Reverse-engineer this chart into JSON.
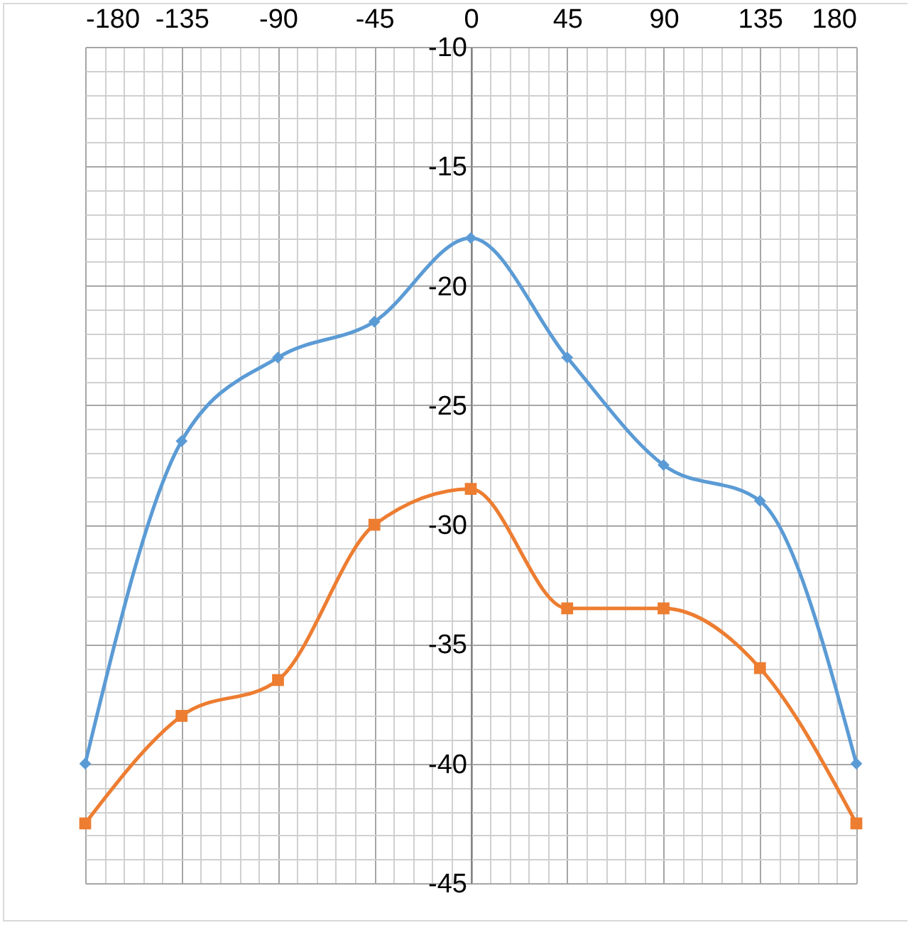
{
  "chart_data": {
    "type": "line",
    "x": [
      -180,
      -135,
      -90,
      -45,
      0,
      45,
      90,
      135,
      180
    ],
    "series": [
      {
        "color": "#5b9bd5",
        "marker": "diamond",
        "values": [
          -40,
          -26.5,
          -23,
          -21.5,
          -18,
          -23,
          -27.5,
          -29,
          -40
        ]
      },
      {
        "color": "#ed7d31",
        "marker": "square",
        "values": [
          -42.5,
          -38,
          -36.5,
          -30,
          -28.5,
          -33.5,
          -33.5,
          -36,
          -42.5
        ]
      }
    ],
    "xlim": [
      -180,
      180
    ],
    "xticks": [
      -180,
      -135,
      -90,
      -45,
      0,
      45,
      90,
      135,
      180
    ],
    "ylim": [
      -45,
      -10
    ],
    "yticks": [
      -45,
      -40,
      -35,
      -30,
      -25,
      -20,
      -15,
      -10
    ],
    "grid": true,
    "line_style": "solid"
  }
}
